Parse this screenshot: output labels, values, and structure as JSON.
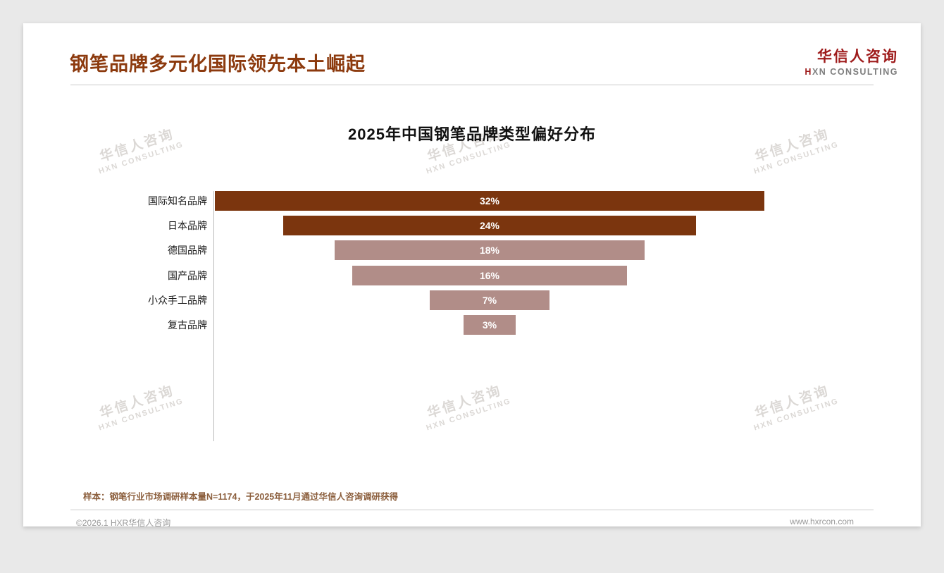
{
  "header": {
    "title": "钢笔品牌多元化国际领先本土崛起",
    "logo_cn": "华信人咨询",
    "logo_mark": "H",
    "logo_en_rest": "XN CONSULTING"
  },
  "watermark": {
    "line1": "华信人咨询",
    "line2": "HXN CONSULTING"
  },
  "chart_data": {
    "type": "bar",
    "variant": "horizontal-centered-funnel",
    "title": "2025年中国钢笔品牌类型偏好分布",
    "categories": [
      "国际知名品牌",
      "日本品牌",
      "德国品牌",
      "国产品牌",
      "小众手工品牌",
      "复古品牌"
    ],
    "values": [
      32,
      24,
      18,
      16,
      7,
      3
    ],
    "unit": "%",
    "data_labels": [
      "32%",
      "24%",
      "18%",
      "16%",
      "7%",
      "3%"
    ],
    "colors": [
      "#7B350E",
      "#7B350E",
      "#B18D88",
      "#B18D88",
      "#B18D88",
      "#B18D88"
    ],
    "xlim": [
      0,
      32
    ],
    "legend": false,
    "gridlines": false
  },
  "footnote": "样本：钢笔行业市场调研样本量N=1174，于2025年11月通过华信人咨询调研获得",
  "footer": {
    "left": "©2026.1 HXR华信人咨询",
    "right": "www.hxrcon.com"
  },
  "colors": {
    "accent": "#8C3A0E",
    "bar_dark": "#7B350E",
    "bar_light": "#B18D88",
    "logo_red": "#9E1B1B",
    "footnote": "#8B5E3C"
  }
}
